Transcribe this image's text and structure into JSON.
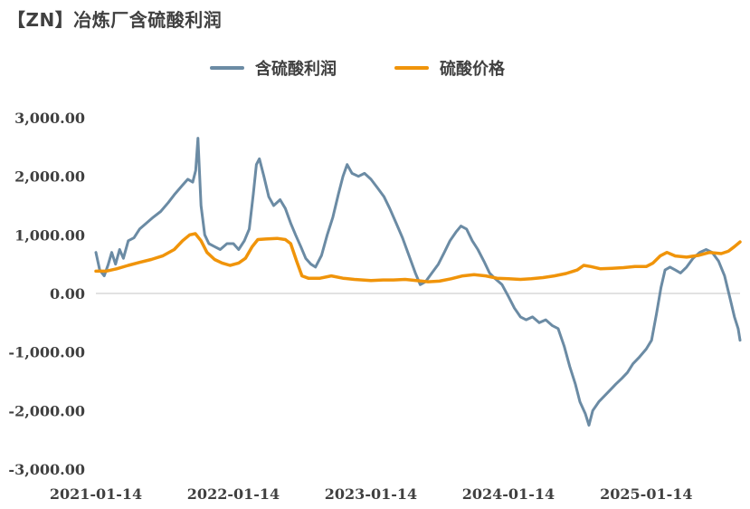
{
  "chart_data": {
    "type": "line",
    "title": "【ZN】冶炼厂含硫酸利润",
    "xlabel": "",
    "ylabel": "",
    "ylim": [
      -3000,
      3000
    ],
    "yticks": [
      3000,
      2000,
      1000,
      0,
      -1000,
      -2000,
      -3000
    ],
    "ytick_labels": [
      "3,000.00",
      "2,000.00",
      "1,000.00",
      "0.00",
      "-1,000.00",
      "-2,000.00",
      "-3,000.00"
    ],
    "xlim": [
      "2021-01-14",
      "2025-09-20"
    ],
    "xticks": [
      "2021-01-14",
      "2022-01-14",
      "2023-01-14",
      "2024-01-14",
      "2025-01-14"
    ],
    "grid": "zero-line only",
    "legend_position": "top",
    "series": [
      {
        "name": "含硫酸利润",
        "color": "#6b8ba4",
        "points": [
          [
            "2021-01-14",
            700
          ],
          [
            "2021-01-24",
            400
          ],
          [
            "2021-02-05",
            300
          ],
          [
            "2021-02-16",
            500
          ],
          [
            "2021-02-25",
            700
          ],
          [
            "2021-03-07",
            500
          ],
          [
            "2021-03-18",
            750
          ],
          [
            "2021-03-28",
            600
          ],
          [
            "2021-04-10",
            900
          ],
          [
            "2021-04-25",
            950
          ],
          [
            "2021-05-10",
            1100
          ],
          [
            "2021-05-28",
            1200
          ],
          [
            "2021-06-15",
            1300
          ],
          [
            "2021-07-05",
            1400
          ],
          [
            "2021-07-25",
            1550
          ],
          [
            "2021-08-12",
            1700
          ],
          [
            "2021-09-01",
            1850
          ],
          [
            "2021-09-15",
            1950
          ],
          [
            "2021-09-28",
            1900
          ],
          [
            "2021-10-06",
            2100
          ],
          [
            "2021-10-12",
            2650
          ],
          [
            "2021-10-20",
            1500
          ],
          [
            "2021-10-30",
            1000
          ],
          [
            "2021-11-10",
            850
          ],
          [
            "2021-11-25",
            800
          ],
          [
            "2021-12-10",
            750
          ],
          [
            "2021-12-28",
            850
          ],
          [
            "2022-01-14",
            850
          ],
          [
            "2022-01-28",
            750
          ],
          [
            "2022-02-12",
            900
          ],
          [
            "2022-02-25",
            1100
          ],
          [
            "2022-03-08",
            1700
          ],
          [
            "2022-03-16",
            2200
          ],
          [
            "2022-03-24",
            2300
          ],
          [
            "2022-04-05",
            2000
          ],
          [
            "2022-04-18",
            1650
          ],
          [
            "2022-05-01",
            1500
          ],
          [
            "2022-05-18",
            1600
          ],
          [
            "2022-06-01",
            1450
          ],
          [
            "2022-06-15",
            1200
          ],
          [
            "2022-06-28",
            1000
          ],
          [
            "2022-07-12",
            800
          ],
          [
            "2022-07-25",
            600
          ],
          [
            "2022-08-08",
            500
          ],
          [
            "2022-08-20",
            450
          ],
          [
            "2022-09-05",
            650
          ],
          [
            "2022-09-20",
            1000
          ],
          [
            "2022-10-05",
            1300
          ],
          [
            "2022-10-20",
            1700
          ],
          [
            "2022-11-01",
            2000
          ],
          [
            "2022-11-12",
            2200
          ],
          [
            "2022-11-25",
            2050
          ],
          [
            "2022-12-12",
            2000
          ],
          [
            "2022-12-28",
            2050
          ],
          [
            "2023-01-14",
            1950
          ],
          [
            "2023-02-01",
            1800
          ],
          [
            "2023-02-18",
            1650
          ],
          [
            "2023-03-05",
            1450
          ],
          [
            "2023-03-22",
            1200
          ],
          [
            "2023-04-08",
            950
          ],
          [
            "2023-04-25",
            650
          ],
          [
            "2023-05-12",
            350
          ],
          [
            "2023-05-25",
            150
          ],
          [
            "2023-06-08",
            200
          ],
          [
            "2023-06-25",
            350
          ],
          [
            "2023-07-12",
            500
          ],
          [
            "2023-07-28",
            700
          ],
          [
            "2023-08-12",
            900
          ],
          [
            "2023-08-28",
            1050
          ],
          [
            "2023-09-10",
            1150
          ],
          [
            "2023-09-25",
            1100
          ],
          [
            "2023-10-10",
            900
          ],
          [
            "2023-10-25",
            750
          ],
          [
            "2023-11-10",
            550
          ],
          [
            "2023-11-25",
            350
          ],
          [
            "2023-12-10",
            250
          ],
          [
            "2023-12-28",
            150
          ],
          [
            "2024-01-14",
            -50
          ],
          [
            "2024-01-30",
            -250
          ],
          [
            "2024-02-15",
            -400
          ],
          [
            "2024-03-01",
            -450
          ],
          [
            "2024-03-18",
            -400
          ],
          [
            "2024-04-05",
            -500
          ],
          [
            "2024-04-22",
            -450
          ],
          [
            "2024-05-10",
            -550
          ],
          [
            "2024-05-25",
            -600
          ],
          [
            "2024-06-10",
            -900
          ],
          [
            "2024-06-25",
            -1250
          ],
          [
            "2024-07-10",
            -1550
          ],
          [
            "2024-07-22",
            -1850
          ],
          [
            "2024-08-05",
            -2050
          ],
          [
            "2024-08-15",
            -2250
          ],
          [
            "2024-08-25",
            -2000
          ],
          [
            "2024-09-10",
            -1850
          ],
          [
            "2024-09-25",
            -1750
          ],
          [
            "2024-10-10",
            -1650
          ],
          [
            "2024-10-25",
            -1550
          ],
          [
            "2024-11-10",
            -1450
          ],
          [
            "2024-11-25",
            -1350
          ],
          [
            "2024-12-10",
            -1200
          ],
          [
            "2024-12-25",
            -1100
          ],
          [
            "2025-01-14",
            -950
          ],
          [
            "2025-01-28",
            -800
          ],
          [
            "2025-02-10",
            -350
          ],
          [
            "2025-02-22",
            100
          ],
          [
            "2025-03-05",
            400
          ],
          [
            "2025-03-18",
            450
          ],
          [
            "2025-04-01",
            400
          ],
          [
            "2025-04-15",
            350
          ],
          [
            "2025-05-01",
            450
          ],
          [
            "2025-05-18",
            600
          ],
          [
            "2025-06-05",
            700
          ],
          [
            "2025-06-22",
            750
          ],
          [
            "2025-07-08",
            700
          ],
          [
            "2025-07-25",
            550
          ],
          [
            "2025-08-10",
            300
          ],
          [
            "2025-08-25",
            -100
          ],
          [
            "2025-09-05",
            -400
          ],
          [
            "2025-09-15",
            -600
          ],
          [
            "2025-09-20",
            -800
          ]
        ]
      },
      {
        "name": "硫酸价格",
        "color": "#f0940a",
        "points": [
          [
            "2021-01-14",
            380
          ],
          [
            "2021-02-10",
            380
          ],
          [
            "2021-03-10",
            420
          ],
          [
            "2021-04-10",
            480
          ],
          [
            "2021-05-10",
            530
          ],
          [
            "2021-06-10",
            580
          ],
          [
            "2021-07-10",
            640
          ],
          [
            "2021-08-10",
            750
          ],
          [
            "2021-09-01",
            900
          ],
          [
            "2021-09-20",
            1000
          ],
          [
            "2021-10-05",
            1020
          ],
          [
            "2021-10-20",
            900
          ],
          [
            "2021-11-05",
            700
          ],
          [
            "2021-11-25",
            580
          ],
          [
            "2021-12-15",
            520
          ],
          [
            "2022-01-05",
            480
          ],
          [
            "2022-01-28",
            520
          ],
          [
            "2022-02-15",
            600
          ],
          [
            "2022-03-05",
            800
          ],
          [
            "2022-03-20",
            920
          ],
          [
            "2022-04-10",
            930
          ],
          [
            "2022-05-10",
            940
          ],
          [
            "2022-06-01",
            920
          ],
          [
            "2022-06-15",
            850
          ],
          [
            "2022-07-01",
            550
          ],
          [
            "2022-07-15",
            300
          ],
          [
            "2022-08-01",
            260
          ],
          [
            "2022-09-01",
            260
          ],
          [
            "2022-10-01",
            300
          ],
          [
            "2022-11-01",
            260
          ],
          [
            "2022-12-01",
            240
          ],
          [
            "2023-01-14",
            220
          ],
          [
            "2023-02-15",
            230
          ],
          [
            "2023-03-15",
            230
          ],
          [
            "2023-04-15",
            240
          ],
          [
            "2023-05-15",
            220
          ],
          [
            "2023-06-15",
            200
          ],
          [
            "2023-07-15",
            210
          ],
          [
            "2023-08-15",
            250
          ],
          [
            "2023-09-15",
            300
          ],
          [
            "2023-10-15",
            320
          ],
          [
            "2023-11-15",
            300
          ],
          [
            "2023-12-15",
            260
          ],
          [
            "2024-01-14",
            250
          ],
          [
            "2024-02-15",
            240
          ],
          [
            "2024-03-15",
            250
          ],
          [
            "2024-04-15",
            270
          ],
          [
            "2024-05-15",
            300
          ],
          [
            "2024-06-15",
            340
          ],
          [
            "2024-07-15",
            400
          ],
          [
            "2024-08-01",
            480
          ],
          [
            "2024-08-20",
            460
          ],
          [
            "2024-09-15",
            420
          ],
          [
            "2024-10-15",
            430
          ],
          [
            "2024-11-15",
            440
          ],
          [
            "2024-12-15",
            460
          ],
          [
            "2025-01-14",
            460
          ],
          [
            "2025-02-01",
            520
          ],
          [
            "2025-02-20",
            640
          ],
          [
            "2025-03-10",
            700
          ],
          [
            "2025-04-01",
            640
          ],
          [
            "2025-05-01",
            620
          ],
          [
            "2025-06-01",
            650
          ],
          [
            "2025-07-01",
            700
          ],
          [
            "2025-08-01",
            680
          ],
          [
            "2025-08-20",
            720
          ],
          [
            "2025-09-05",
            800
          ],
          [
            "2025-09-20",
            880
          ]
        ]
      }
    ]
  }
}
